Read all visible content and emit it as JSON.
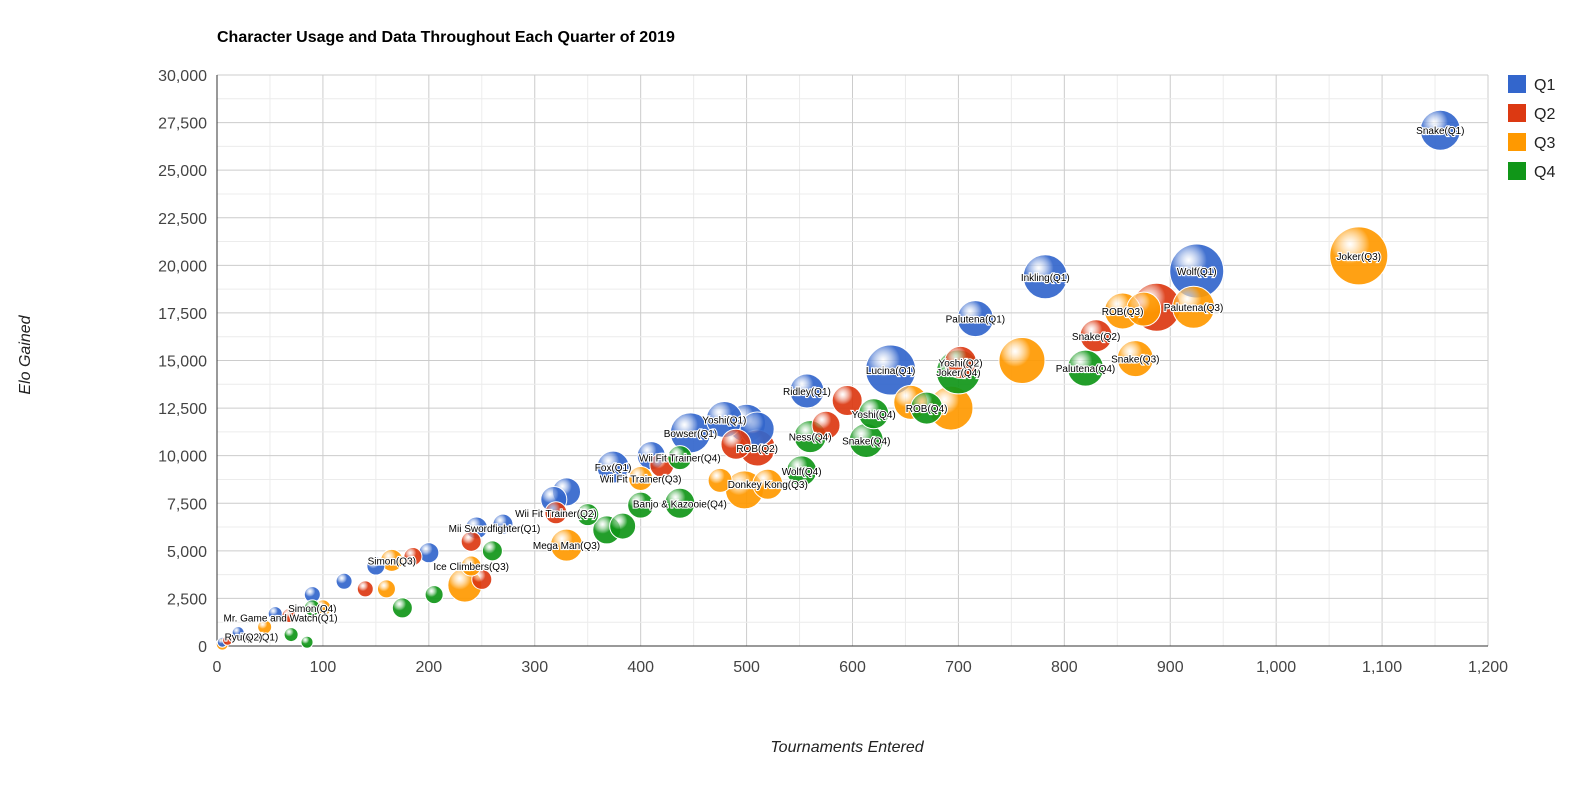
{
  "chart_data": {
    "type": "bubble",
    "title": "Character Usage and Data Throughout Each Quarter of 2019",
    "xlabel": "Tournaments Entered",
    "ylabel": "Elo Gained",
    "xlim": [
      0,
      1200
    ],
    "ylim": [
      0,
      30000
    ],
    "x_ticks": [
      "0",
      "100",
      "200",
      "300",
      "400",
      "500",
      "600",
      "700",
      "800",
      "900",
      "1,000",
      "1,100",
      "1,200"
    ],
    "y_ticks": [
      "0",
      "2,500",
      "5,000",
      "7,500",
      "10,000",
      "12,500",
      "15,000",
      "17,500",
      "20,000",
      "22,500",
      "25,000",
      "27,500",
      "30,000"
    ],
    "grid": true,
    "legend_position": "right",
    "series": [
      {
        "name": "Q1",
        "color": "#3366cc",
        "points": [
          {
            "label": "Snake(Q1)",
            "x": 1155,
            "y": 27100,
            "size": 20
          },
          {
            "label": "Wolf(Q1)",
            "x": 925,
            "y": 19700,
            "size": 27
          },
          {
            "label": "Inkling(Q1)",
            "x": 782,
            "y": 19400,
            "size": 22
          },
          {
            "label": "Palutena(Q1)",
            "x": 716,
            "y": 17200,
            "size": 18
          },
          {
            "label": "Lucina(Q1)",
            "x": 636,
            "y": 14500,
            "size": 25
          },
          {
            "label": "Ridley(Q1)",
            "x": 557,
            "y": 13400,
            "size": 17
          },
          {
            "label": "Yoshi(Q1)",
            "x": 479,
            "y": 11900,
            "size": 18
          },
          {
            "label": "Bowser(Q1)",
            "x": 447,
            "y": 11200,
            "size": 20
          },
          {
            "label": "Fox(Q1)",
            "x": 374,
            "y": 9400,
            "size": 16
          },
          {
            "label": "",
            "x": 500,
            "y": 11700,
            "size": 19
          },
          {
            "label": "",
            "x": 510,
            "y": 11400,
            "size": 17
          },
          {
            "label": "",
            "x": 410,
            "y": 10000,
            "size": 14
          },
          {
            "label": "",
            "x": 330,
            "y": 8100,
            "size": 14
          },
          {
            "label": "",
            "x": 318,
            "y": 7700,
            "size": 13
          },
          {
            "label": "",
            "x": 245,
            "y": 6200,
            "size": 11
          },
          {
            "label": "",
            "x": 270,
            "y": 6400,
            "size": 10
          },
          {
            "label": "",
            "x": 200,
            "y": 4900,
            "size": 10
          },
          {
            "label": "",
            "x": 150,
            "y": 4200,
            "size": 9
          },
          {
            "label": "",
            "x": 120,
            "y": 3400,
            "size": 8
          },
          {
            "label": "",
            "x": 90,
            "y": 2700,
            "size": 8
          },
          {
            "label": "",
            "x": 55,
            "y": 1700,
            "size": 7
          },
          {
            "label": "Mii Swordfighter(Q1)",
            "x": 262,
            "y": 6200,
            "size": 0
          },
          {
            "label": "Mr. Game and Watch(Q1)",
            "x": 60,
            "y": 1500,
            "size": 0
          },
          {
            "label": "Ryu(Q1)",
            "x": 40,
            "y": 500,
            "size": 0
          },
          {
            "label": "",
            "x": 20,
            "y": 700,
            "size": 6
          },
          {
            "label": "",
            "x": 5,
            "y": 200,
            "size": 5
          }
        ]
      },
      {
        "name": "Q2",
        "color": "#dc3912",
        "points": [
          {
            "label": "",
            "x": 887,
            "y": 17800,
            "size": 24
          },
          {
            "label": "Snake(Q2)",
            "x": 830,
            "y": 16300,
            "size": 16
          },
          {
            "label": "Yoshi(Q2)",
            "x": 702,
            "y": 14900,
            "size": 16
          },
          {
            "label": "ROB(Q2)",
            "x": 510,
            "y": 10400,
            "size": 18
          },
          {
            "label": "",
            "x": 490,
            "y": 10600,
            "size": 15
          },
          {
            "label": "",
            "x": 595,
            "y": 12900,
            "size": 15
          },
          {
            "label": "",
            "x": 575,
            "y": 11600,
            "size": 14
          },
          {
            "label": "",
            "x": 420,
            "y": 9500,
            "size": 12
          },
          {
            "label": "Wii Fit Trainer(Q2)",
            "x": 320,
            "y": 7000,
            "size": 11
          },
          {
            "label": "",
            "x": 240,
            "y": 5500,
            "size": 10
          },
          {
            "label": "",
            "x": 250,
            "y": 3500,
            "size": 10
          },
          {
            "label": "",
            "x": 185,
            "y": 4700,
            "size": 9
          },
          {
            "label": "",
            "x": 140,
            "y": 3000,
            "size": 8
          },
          {
            "label": "",
            "x": 68,
            "y": 1600,
            "size": 7
          },
          {
            "label": "Ryu(Q2)",
            "x": 25,
            "y": 500,
            "size": 0
          },
          {
            "label": "",
            "x": 10,
            "y": 300,
            "size": 5
          }
        ]
      },
      {
        "name": "Q3",
        "color": "#ff9900",
        "points": [
          {
            "label": "Joker(Q3)",
            "x": 1078,
            "y": 20500,
            "size": 29
          },
          {
            "label": "Palutena(Q3)",
            "x": 922,
            "y": 17800,
            "size": 21
          },
          {
            "label": "ROB(Q3)",
            "x": 855,
            "y": 17600,
            "size": 18
          },
          {
            "label": "",
            "x": 875,
            "y": 17700,
            "size": 17
          },
          {
            "label": "Snake(Q3)",
            "x": 867,
            "y": 15100,
            "size": 18
          },
          {
            "label": "",
            "x": 760,
            "y": 15000,
            "size": 23
          },
          {
            "label": "",
            "x": 693,
            "y": 12500,
            "size": 22
          },
          {
            "label": "",
            "x": 655,
            "y": 12800,
            "size": 17
          },
          {
            "label": "",
            "x": 498,
            "y": 8200,
            "size": 19
          },
          {
            "label": "Donkey Kong(Q3)",
            "x": 520,
            "y": 8500,
            "size": 15
          },
          {
            "label": "Wii Fit Trainer(Q3)",
            "x": 400,
            "y": 8800,
            "size": 12
          },
          {
            "label": "",
            "x": 475,
            "y": 8700,
            "size": 12
          },
          {
            "label": "Mega Man(Q3)",
            "x": 330,
            "y": 5300,
            "size": 16
          },
          {
            "label": "Ice Climbers(Q3)",
            "x": 240,
            "y": 4200,
            "size": 10
          },
          {
            "label": "",
            "x": 234,
            "y": 3200,
            "size": 17
          },
          {
            "label": "Simon(Q3)",
            "x": 165,
            "y": 4500,
            "size": 11
          },
          {
            "label": "",
            "x": 160,
            "y": 3000,
            "size": 9
          },
          {
            "label": "",
            "x": 100,
            "y": 2000,
            "size": 8
          },
          {
            "label": "",
            "x": 45,
            "y": 1000,
            "size": 7
          },
          {
            "label": "",
            "x": 5,
            "y": 100,
            "size": 6
          }
        ]
      },
      {
        "name": "Q4",
        "color": "#109618",
        "points": [
          {
            "label": "Palutena(Q4)",
            "x": 820,
            "y": 14600,
            "size": 18
          },
          {
            "label": "Joker(Q4)",
            "x": 700,
            "y": 14400,
            "size": 22
          },
          {
            "label": "ROB(Q4)",
            "x": 670,
            "y": 12500,
            "size": 16
          },
          {
            "label": "Yoshi(Q4)",
            "x": 620,
            "y": 12200,
            "size": 15
          },
          {
            "label": "Snake(Q4)",
            "x": 613,
            "y": 10800,
            "size": 17
          },
          {
            "label": "Ness(Q4)",
            "x": 560,
            "y": 11000,
            "size": 16
          },
          {
            "label": "Wolf(Q4)",
            "x": 552,
            "y": 9200,
            "size": 15
          },
          {
            "label": "Wii Fit Trainer(Q4)",
            "x": 437,
            "y": 9900,
            "size": 12
          },
          {
            "label": "Banjo & Kazooie(Q4)",
            "x": 437,
            "y": 7500,
            "size": 15
          },
          {
            "label": "",
            "x": 400,
            "y": 7400,
            "size": 13
          },
          {
            "label": "",
            "x": 368,
            "y": 6100,
            "size": 14
          },
          {
            "label": "",
            "x": 383,
            "y": 6300,
            "size": 13
          },
          {
            "label": "",
            "x": 350,
            "y": 6900,
            "size": 11
          },
          {
            "label": "",
            "x": 260,
            "y": 5000,
            "size": 10
          },
          {
            "label": "",
            "x": 205,
            "y": 2700,
            "size": 9
          },
          {
            "label": "",
            "x": 175,
            "y": 2000,
            "size": 10
          },
          {
            "label": "Simon(Q4)",
            "x": 90,
            "y": 2000,
            "size": 8
          },
          {
            "label": "",
            "x": 70,
            "y": 600,
            "size": 7
          },
          {
            "label": "",
            "x": 85,
            "y": 200,
            "size": 6
          }
        ]
      }
    ]
  }
}
